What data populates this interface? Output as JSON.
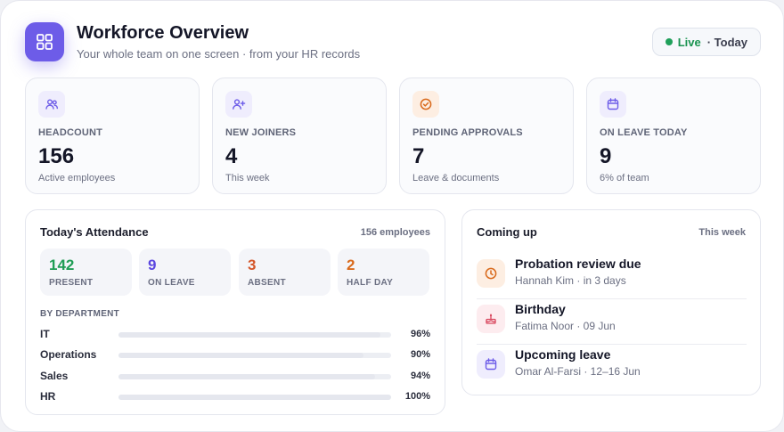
{
  "header": {
    "title": "Workforce Overview",
    "subtitle": "Your whole team on one screen · from your HR records",
    "status": {
      "live": "Live",
      "range": "· Today"
    },
    "icon": "grid-icon"
  },
  "colors": {
    "accent": "#6d5ce8",
    "present": "#1f9d55",
    "on_leave": "#5b47e0",
    "absent": "#d4562a",
    "half_day": "#d96a1c"
  },
  "stats": [
    {
      "label": "HEADCOUNT",
      "value": "156",
      "sub": "Active employees",
      "icon": "users-icon"
    },
    {
      "label": "NEW JOINERS",
      "value": "4",
      "sub": "This week",
      "icon": "user-plus-icon"
    },
    {
      "label": "PENDING APPROVALS",
      "value": "7",
      "sub": "Leave & documents",
      "icon": "check-circle-icon"
    },
    {
      "label": "ON LEAVE TODAY",
      "value": "9",
      "sub": "6% of team",
      "icon": "calendar-icon"
    }
  ],
  "attendance": {
    "title": "Today's Attendance",
    "meta": "156 employees",
    "summary": [
      {
        "value": "142",
        "label": "PRESENT"
      },
      {
        "value": "9",
        "label": "ON LEAVE"
      },
      {
        "value": "3",
        "label": "ABSENT"
      },
      {
        "value": "2",
        "label": "HALF DAY"
      }
    ],
    "dept_heading": "BY DEPARTMENT",
    "departments": [
      {
        "name": "IT",
        "pct_label": "96%",
        "fraction": 0.96
      },
      {
        "name": "Operations",
        "pct_label": "90%",
        "fraction": 0.9
      },
      {
        "name": "Sales",
        "pct_label": "94%",
        "fraction": 0.94
      },
      {
        "name": "HR",
        "pct_label": "100%",
        "fraction": 1.0
      }
    ]
  },
  "coming_up": {
    "title": "Coming up",
    "meta": "This week",
    "items": [
      {
        "title": "Probation review due",
        "sub": "Hannah Kim · in 3 days",
        "icon": "clock-icon"
      },
      {
        "title": "Birthday",
        "sub": "Fatima Noor · 09 Jun",
        "icon": "cake-icon"
      },
      {
        "title": "Upcoming leave",
        "sub": "Omar Al-Farsi · 12–16 Jun",
        "icon": "calendar-icon"
      }
    ]
  }
}
